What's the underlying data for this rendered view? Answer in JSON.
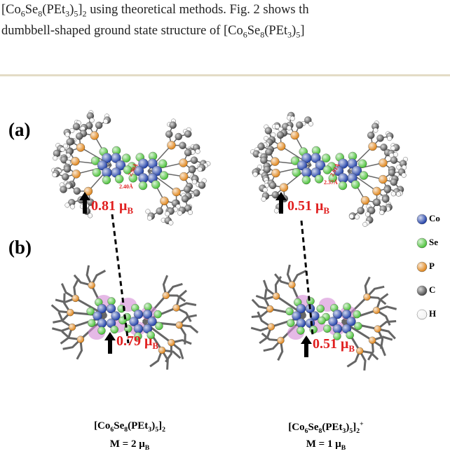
{
  "text_lines": [
    {
      "runs": [
        "[Co",
        {
          "sub": "6"
        },
        "Se",
        {
          "sub": "8"
        },
        "(PEt",
        {
          "sub": "3"
        },
        ")",
        {
          "sub": "5"
        },
        "]",
        {
          "sub": "2"
        },
        " using theoretical methods. Fig. 2 shows th"
      ]
    },
    {
      "runs": [
        "dumbbell-shaped ground state structure of [Co",
        {
          "sub": "6"
        },
        "Se",
        {
          "sub": "8"
        },
        "(PEt",
        {
          "sub": "3"
        },
        ")",
        {
          "sub": "5"
        },
        "]"
      ]
    }
  ],
  "figure": {
    "panel_labels": [
      "(a)",
      "(b)"
    ],
    "distance_labels": [
      "2.90Å",
      "2.40Å",
      "2.91Å",
      "2.37Å"
    ],
    "moments": [
      {
        "runs": [
          "0.81 μ",
          {
            "sub": "B"
          }
        ]
      },
      {
        "runs": [
          "0.79 μ",
          {
            "sub": "B"
          }
        ]
      },
      {
        "runs": [
          "0.51 μ",
          {
            "sub": "B"
          }
        ]
      },
      {
        "runs": [
          "0.51 μ",
          {
            "sub": "B"
          }
        ]
      }
    ],
    "captions": [
      {
        "formula": [
          "[Co",
          {
            "sub": "6"
          },
          "Se",
          {
            "sub": "8"
          },
          "(PEt",
          {
            "sub": "3"
          },
          ")",
          {
            "sub": "5"
          },
          "]",
          {
            "sub": "2"
          }
        ],
        "moment": [
          "M = 2 μ",
          {
            "sub": "B"
          }
        ]
      },
      {
        "formula": [
          "[Co",
          {
            "sub": "6"
          },
          "Se",
          {
            "sub": "8"
          },
          "(PEt",
          {
            "sub": "3"
          },
          ")",
          {
            "sub": "5"
          },
          "]",
          {
            "sub": "2"
          },
          {
            "sup": "+"
          }
        ],
        "moment": [
          "M = 1 μ",
          {
            "sub": "B"
          }
        ]
      }
    ],
    "legend": [
      {
        "label": "Co",
        "color": "#1f3fa8"
      },
      {
        "label": "Se",
        "color": "#4cc23a"
      },
      {
        "label": "P",
        "color": "#e0861c"
      },
      {
        "label": "C",
        "color": "#4a4a4a"
      },
      {
        "label": "H",
        "color": "#f2f2f2"
      }
    ]
  }
}
